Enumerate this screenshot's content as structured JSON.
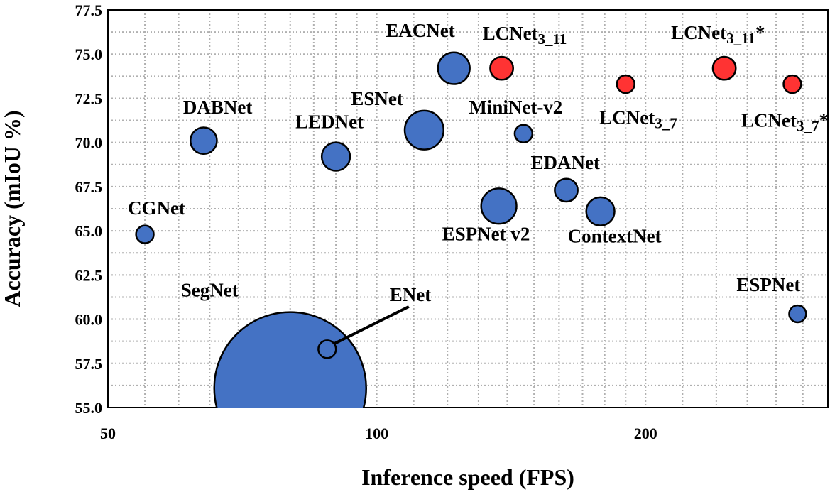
{
  "chart_data": {
    "type": "scatter",
    "bubble": true,
    "title": "",
    "xlabel": "Inference speed (FPS)",
    "ylabel": "Accuracy (mIoU %)",
    "xscale": "log",
    "xlim": [
      50,
      320
    ],
    "ylim": [
      55.0,
      77.5
    ],
    "x_ticks": [
      50,
      100,
      200
    ],
    "y_ticks": [
      "55.0",
      "57.5",
      "60.0",
      "62.5",
      "65.0",
      "67.5",
      "70.0",
      "72.5",
      "75.0",
      "77.5"
    ],
    "grid": true,
    "grid_style": "dotted",
    "colors": {
      "baseline": "#4472c4",
      "proposed": "#ff3333",
      "edge": "#000000"
    },
    "points": [
      {
        "label": "SegNet",
        "x": 80,
        "y": 56.1,
        "size": 4.3,
        "group": "baseline"
      },
      {
        "label": "ENet",
        "x": 88,
        "y": 58.3,
        "size": 0.5,
        "group": "baseline"
      },
      {
        "label": "CGNet",
        "x": 55,
        "y": 64.8,
        "size": 0.5,
        "group": "baseline"
      },
      {
        "label": "DABNet",
        "x": 64,
        "y": 70.1,
        "size": 0.75,
        "group": "baseline"
      },
      {
        "label": "LEDNet",
        "x": 90,
        "y": 69.2,
        "size": 0.8,
        "group": "baseline"
      },
      {
        "label": "ESNet",
        "x": 113,
        "y": 70.7,
        "size": 1.1,
        "group": "baseline"
      },
      {
        "label": "EACNet",
        "x": 122,
        "y": 74.2,
        "size": 0.9,
        "group": "baseline"
      },
      {
        "label": "ESPNet v2",
        "x": 137,
        "y": 66.4,
        "size": 1.0,
        "group": "baseline"
      },
      {
        "label": "MiniNet-v2",
        "x": 146,
        "y": 70.5,
        "size": 0.5,
        "group": "baseline"
      },
      {
        "label": "EDANet",
        "x": 163,
        "y": 67.3,
        "size": 0.65,
        "group": "baseline"
      },
      {
        "label": "ContextNet",
        "x": 178,
        "y": 66.1,
        "size": 0.8,
        "group": "baseline"
      },
      {
        "label": "ESPNet",
        "x": 296,
        "y": 60.3,
        "size": 0.48,
        "group": "baseline"
      },
      {
        "label": "LCNet3_11",
        "x": 138,
        "y": 74.2,
        "size": 0.65,
        "group": "proposed"
      },
      {
        "label": "LCNet3_7",
        "x": 190,
        "y": 73.3,
        "size": 0.5,
        "group": "proposed"
      },
      {
        "label": "LCNet3_11*",
        "x": 245,
        "y": 74.2,
        "size": 0.65,
        "group": "proposed"
      },
      {
        "label": "LCNet3_7*",
        "x": 292,
        "y": 73.3,
        "size": 0.5,
        "group": "proposed"
      }
    ],
    "annotations": [
      {
        "text": "ENet",
        "points_to": "ENet",
        "arrow": "line"
      }
    ]
  }
}
